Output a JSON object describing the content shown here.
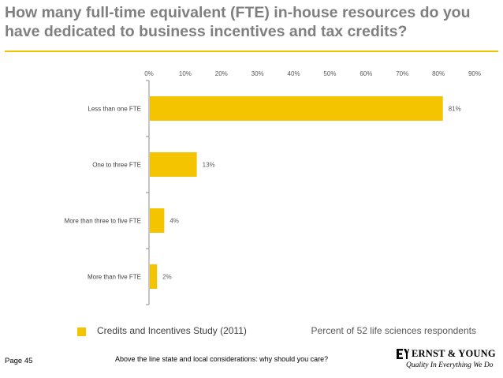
{
  "slide": {
    "title": "How many full-time equivalent (FTE) in-house resources do you have dedicated to business incentives and tax credits?",
    "legend_label": "Credits and Incentives Study (2011)",
    "respondents_note": "Percent of 52 life sciences respondents",
    "page_label": "Page 45",
    "footer_text": "Above the line state and local considerations: why should you care?",
    "logo_name": "ERNST & YOUNG",
    "logo_tagline": "Quality In Everything We Do"
  },
  "colors": {
    "bar": "#f5c400",
    "title": "#7f7f7f",
    "rule": "#f5c400"
  },
  "chart_data": {
    "type": "bar",
    "orientation": "horizontal",
    "categories": [
      "Less than one FTE",
      "One to three FTE",
      "More than three to five FTE",
      "More than five FTE"
    ],
    "values": [
      81,
      13,
      4,
      2
    ],
    "value_labels": [
      "81%",
      "13%",
      "4%",
      "2%"
    ],
    "xlim": [
      0,
      90
    ],
    "x_ticks": [
      0,
      10,
      20,
      30,
      40,
      50,
      60,
      70,
      80,
      90
    ],
    "x_tick_labels": [
      "0%",
      "10%",
      "20%",
      "30%",
      "40%",
      "50%",
      "60%",
      "70%",
      "80%",
      "90%"
    ],
    "x_axis_position": "top",
    "grid": false,
    "legend": "bottom-left"
  }
}
